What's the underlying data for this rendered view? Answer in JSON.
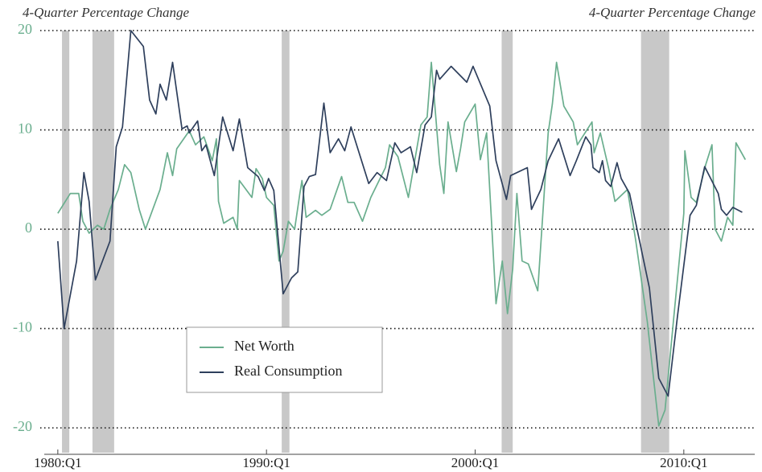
{
  "chart_data": {
    "type": "line",
    "y_label": "4-Quarter Percentage Change",
    "y2_label": "4-Quarter Percentage Change",
    "xlim": [
      1979.35,
      2013.4
    ],
    "ylim": [
      -22.5,
      20
    ],
    "xticks": [
      {
        "value": 1980,
        "label": "1980:Q1"
      },
      {
        "value": 1990,
        "label": "1990:Q1"
      },
      {
        "value": 2000,
        "label": "2000:Q1"
      },
      {
        "value": 2010,
        "label": "2010:Q1"
      }
    ],
    "yticks": [
      20,
      10,
      0,
      -10,
      -20
    ],
    "grid": true,
    "shaded_periods": [
      [
        1980.2,
        1980.55
      ],
      [
        1981.66,
        1982.7
      ],
      [
        1990.73,
        1991.1
      ],
      [
        2001.27,
        2001.8
      ],
      [
        2007.95,
        2009.3
      ]
    ],
    "shade_color": "#c8c8c8",
    "series": [
      {
        "name": "Net Worth",
        "color": "#6aae8e",
        "x": [
          1980,
          1980.6,
          1981.0,
          1981.2,
          1981.5,
          1981.9,
          1982.2,
          1982.5,
          1982.9,
          1983.2,
          1983.5,
          1983.9,
          1984.2,
          1984.9,
          1985.25,
          1985.5,
          1985.7,
          1986.3,
          1986.6,
          1987.0,
          1987.2,
          1987.4,
          1987.6,
          1987.7,
          1987.95,
          1988.4,
          1988.6,
          1988.7,
          1989.3,
          1989.5,
          1989.8,
          1990.0,
          1990.35,
          1990.6,
          1990.8,
          1991.05,
          1991.35,
          1991.6,
          1991.7,
          1991.9,
          1992.35,
          1992.65,
          1993.05,
          1993.6,
          1993.9,
          1994.2,
          1994.6,
          1995.0,
          1995.7,
          1995.9,
          1996.3,
          1996.8,
          1997.4,
          1997.7,
          1997.9,
          1998.3,
          1998.5,
          1998.7,
          1999.1,
          1999.3,
          1999.5,
          2000.0,
          2000.25,
          2000.55,
          2001.0,
          2001.3,
          2001.55,
          2001.8,
          2002.0,
          2002.25,
          2002.55,
          2003.0,
          2003.5,
          2003.7,
          2003.9,
          2004.25,
          2004.7,
          2004.9,
          2005.6,
          2005.7,
          2006.0,
          2006.4,
          2006.7,
          2007.3,
          2007.7,
          2008.25,
          2008.8,
          2009.1,
          2009.5,
          2010.0,
          2010.05,
          2010.35,
          2010.6,
          2011.05,
          2011.35,
          2011.5,
          2011.8,
          2012.1,
          2012.35,
          2012.5,
          2012.95
        ],
        "values": [
          1.6,
          3.6,
          3.6,
          0.8,
          -0.4,
          0.4,
          0,
          2.0,
          4.0,
          6.5,
          5.7,
          2.0,
          0,
          4.0,
          7.7,
          5.4,
          8.1,
          9.9,
          8.5,
          9.3,
          8.1,
          6.9,
          9.1,
          2.8,
          0.6,
          1.2,
          0,
          4.9,
          3.2,
          6.1,
          5.1,
          3.2,
          2.4,
          -3.2,
          -2.2,
          0.8,
          0,
          3.6,
          4.9,
          1.2,
          1.9,
          1.4,
          2.0,
          5.3,
          2.7,
          2.7,
          0.8,
          3.2,
          6.2,
          8.5,
          7.3,
          3.2,
          10.5,
          11.3,
          16.8,
          6.5,
          3.6,
          10.8,
          5.8,
          8.1,
          10.8,
          12.6,
          7.0,
          9.7,
          -7.5,
          -3.2,
          -8.5,
          -4.0,
          3.6,
          -3.2,
          -3.5,
          -6.2,
          9.7,
          12.6,
          16.8,
          12.4,
          10.8,
          8.5,
          10.8,
          7.7,
          9.7,
          6.1,
          2.8,
          4.0,
          -1.2,
          -9.3,
          -19.8,
          -18.2,
          -9.3,
          1.6,
          7.9,
          3.2,
          2.7,
          6.5,
          8.5,
          0,
          -1.2,
          1.2,
          0.4,
          8.7,
          7.0
        ]
      },
      {
        "name": "Real Consumption",
        "color": "#2e3f5c",
        "x": [
          1980,
          1980.3,
          1980.9,
          1981.25,
          1981.5,
          1981.8,
          1982.5,
          1982.8,
          1983.1,
          1983.5,
          1984.1,
          1984.4,
          1984.7,
          1984.9,
          1985.2,
          1985.5,
          1985.95,
          1986.2,
          1986.3,
          1986.7,
          1986.9,
          1987.1,
          1987.5,
          1987.9,
          1988.4,
          1988.7,
          1989.1,
          1989.6,
          1989.9,
          1990.1,
          1990.35,
          1990.8,
          1991.2,
          1991.5,
          1991.8,
          1992.05,
          1992.35,
          1992.75,
          1993.05,
          1993.45,
          1993.75,
          1994.05,
          1994.9,
          1995.3,
          1995.75,
          1996.15,
          1996.45,
          1996.9,
          1997.2,
          1997.6,
          1997.9,
          1998.15,
          1998.3,
          1998.85,
          1999.6,
          1999.9,
          2000.7,
          2001.0,
          2001.5,
          2001.7,
          2002.5,
          2002.7,
          2003.15,
          2003.5,
          2004.0,
          2004.55,
          2004.85,
          2005.3,
          2005.55,
          2005.65,
          2005.95,
          2006.1,
          2006.25,
          2006.5,
          2006.8,
          2007.0,
          2007.4,
          2008.35,
          2008.8,
          2009.25,
          2009.7,
          2010.3,
          2010.6,
          2011.0,
          2011.65,
          2011.8,
          2012.05,
          2012.35,
          2012.8
        ],
        "values": [
          -1.2,
          -10,
          -3.2,
          5.7,
          2.8,
          -5.1,
          -1.2,
          8.3,
          10.3,
          20,
          18.4,
          13,
          11.6,
          14.6,
          13,
          16.8,
          10.1,
          10.4,
          9.7,
          10.9,
          7.9,
          8.5,
          5.4,
          11.3,
          7.9,
          11.1,
          6.2,
          5.3,
          3.9,
          5.1,
          3.9,
          -6.5,
          -4.9,
          -4.3,
          4.3,
          5.3,
          5.5,
          12.7,
          7.7,
          9.1,
          7.9,
          10.3,
          4.6,
          5.7,
          4.9,
          8.7,
          7.7,
          8.3,
          5.7,
          10.5,
          11.3,
          16.0,
          15.1,
          16.4,
          14.8,
          16.4,
          12.4,
          6.9,
          3.0,
          5.4,
          6.2,
          2.0,
          4.0,
          6.9,
          9.1,
          5.4,
          6.9,
          9.3,
          8.5,
          6.2,
          5.7,
          6.9,
          4.9,
          4.3,
          6.7,
          5.1,
          3.6,
          -5.9,
          -15,
          -16.8,
          -8.7,
          1.4,
          2.4,
          6.3,
          3.6,
          2.0,
          1.4,
          2.2,
          1.7
        ]
      }
    ]
  }
}
